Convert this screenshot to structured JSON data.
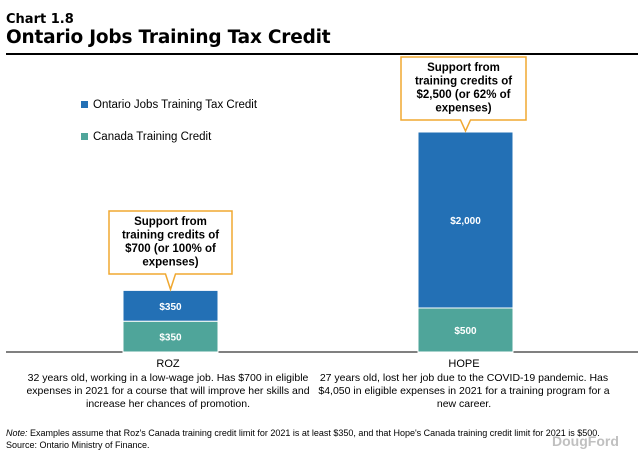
{
  "header": {
    "chart_number": "Chart 1.8",
    "title": "Ontario Jobs Training Tax Credit"
  },
  "colors": {
    "ontario": "#2370b5",
    "canada": "#4fa59a",
    "callout_border": "#f0a830"
  },
  "chart_data": {
    "type": "bar",
    "stacked": true,
    "categories": [
      "ROZ",
      "HOPE"
    ],
    "series": [
      {
        "name": "Canada Training Credit",
        "values": [
          350,
          500
        ],
        "labels": [
          "$350",
          "$500"
        ]
      },
      {
        "name": "Ontario Jobs Training Tax Credit",
        "values": [
          350,
          2000
        ],
        "labels": [
          "$350",
          "$2,000"
        ]
      }
    ],
    "ylim": [
      0,
      2500
    ],
    "legend_position": "top-left",
    "legend_order": [
      "Ontario Jobs Training Tax Credit",
      "Canada Training Credit"
    ],
    "callouts": [
      {
        "category": "ROZ",
        "lines": [
          "Support from",
          "training credits of",
          "$700 (or 100% of",
          "expenses)"
        ]
      },
      {
        "category": "HOPE",
        "lines": [
          "Support from",
          "training credits of",
          "$2,500 (or 62% of",
          "expenses)"
        ]
      }
    ]
  },
  "descriptions": {
    "roz": {
      "name": "ROZ",
      "text": "32 years old, working in a low-wage job. Has $700 in eligible expenses in 2021 for a course that will improve her skills and increase her chances of promotion."
    },
    "hope": {
      "name": "HOPE",
      "text": "27 years old, lost her job due to the COVID-19 pandemic. Has $4,050 in eligible expenses in 2021 for a training program for a new career."
    }
  },
  "footer": {
    "note_label": "Note:",
    "note_text": "Examples assume that Roz's Canada training credit limit for 2021 is at least $350, and that Hope's Canada training credit limit for 2021 is $500.",
    "source": "Source: Ontario Ministry of Finance."
  },
  "watermark": "DougFord"
}
